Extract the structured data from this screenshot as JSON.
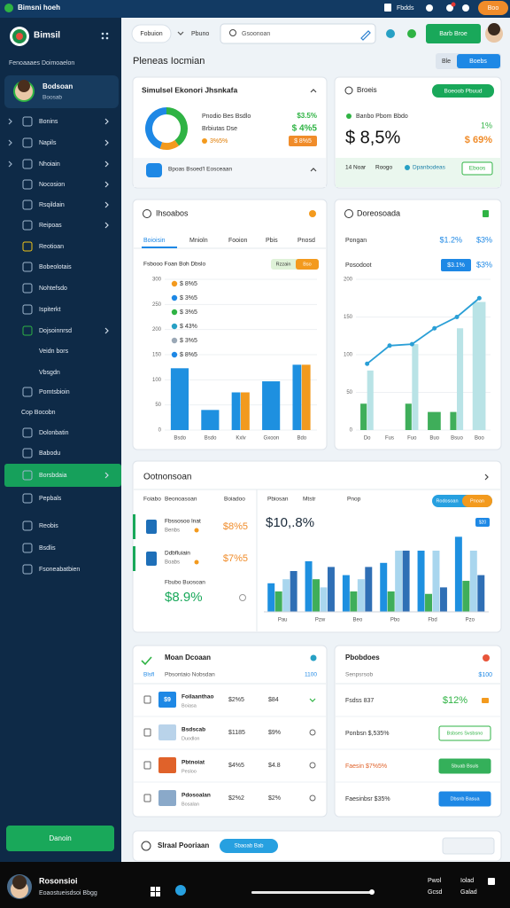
{
  "top_bar": {
    "title": "Bimsni hoeh",
    "links": [
      "Fbdds",
      "Boo"
    ]
  },
  "sidebar": {
    "brand": "Bimsil",
    "subtitle": "Fenoaaaes Doimoaelon",
    "profile": {
      "name": "Bodsoan",
      "role": "Boosab"
    },
    "menu": [
      "Bonins",
      "Napils",
      "Nhoiain",
      "Nocosion",
      "Rsqildain",
      "Reipoas",
      "Reotioan",
      "Bobeolotais",
      "Nohtefsdo",
      "Ispiterkt",
      "Dojsoinnrsd",
      "Veidn bors",
      "Vbsgdn",
      "Pomtsbioin",
      "Cop Bocobn",
      "Dolonbatin",
      "Babodu",
      "Borsbdaia",
      "Pepbals",
      "Reobis",
      "Bsdlis",
      "Fsoneabatbien"
    ],
    "active": 17,
    "button": "Danoin"
  },
  "header": {
    "tabs": [
      "Fobuion",
      "Pbuno"
    ],
    "search": "Gsoonoan",
    "action": "Barb Broe",
    "heading": "Pleneas Iocmian",
    "toggle": [
      "Ble",
      "Boebs"
    ]
  },
  "cards": [
    {
      "title": "Simulsel Ekonori Jhsnkafa",
      "rows": [
        [
          "Pnodio Bes Bsdlo",
          "$3.5%"
        ],
        [
          "Brbiutas Dse",
          "$ 4%5"
        ],
        [
          "3%5%",
          "$ 8%5"
        ]
      ],
      "footer": "Bpoas Bsoed'l Eosceaan",
      "chart": {
        "type": "pie",
        "values": [
          40,
          15,
          45
        ],
        "colors": [
          "#2fb344",
          "#f39a1e",
          "#1e88e5"
        ]
      }
    },
    {
      "title": "Broeis",
      "badge": "Boeoob Pbuud",
      "caption": "Banbo Pbom Bbdo",
      "value": "$ 8,5%",
      "side": [
        "1%",
        "$ 69%"
      ],
      "footer": [
        "14 Noar",
        "Roogo",
        "Dpanbodeas",
        "Eboos"
      ]
    },
    {
      "title": "Ihsoabos",
      "tabs": [
        "Boioisin",
        "Mnioln",
        "Fooion",
        "Pbis",
        "Pnosd"
      ],
      "subtitle": "Fsbooo Foan Boh Dbslo",
      "toggle": [
        "Rzzain",
        "Bso"
      ],
      "annotations": [
        "$ 8%5",
        "$ 3%5",
        "$ 3%5",
        "$ 43%",
        "$ 3%5",
        "$ 8%5"
      ],
      "chart": {
        "type": "bar",
        "categories": [
          "Bsdo",
          "Bsdo",
          "Kxlv",
          "Gxoon",
          "Bdo"
        ],
        "series": [
          {
            "color": "#1e90e0",
            "values": [
              123,
              40,
              75,
              97,
              130
            ]
          },
          {
            "color": "#f29a1f",
            "values": [
              null,
              null,
              75,
              null,
              130
            ]
          }
        ],
        "ylim": [
          0,
          300
        ],
        "yticks": [
          0,
          50,
          100,
          150,
          200,
          250,
          300
        ],
        "grid": true
      }
    },
    {
      "title": "Doreosoada",
      "rows": [
        [
          "Pongan",
          "$1.2%",
          "$3%"
        ],
        [
          "Posodoot",
          "$3.1%",
          "$3%"
        ]
      ],
      "chart": {
        "type": "combo",
        "categories": [
          "Do",
          "Fus",
          "Fuo",
          "Buo",
          "Bsuo",
          "Boo"
        ],
        "series": [
          {
            "type": "bar",
            "color": "#3fae5a",
            "values": [
              35,
              null,
              35,
              24,
              24,
              null
            ]
          },
          {
            "type": "bar",
            "color": "#b9e3e6",
            "values": [
              79,
              null,
              114,
              null,
              135,
              170
            ]
          },
          {
            "type": "line",
            "color": "#2a9fd6",
            "values": [
              88,
              112,
              114,
              135,
              150,
              175
            ]
          }
        ],
        "ylim": [
          0,
          200
        ],
        "yticks": [
          0,
          50,
          100,
          150,
          200
        ],
        "grid": true
      }
    },
    {
      "title": "Ootnonsoan",
      "columns": [
        "Foiabo",
        "Beonoasoan",
        "Boiadoo"
      ],
      "items": [
        {
          "name": "Fbssosoo Inat",
          "note": "Benbs",
          "value": "$8%5"
        },
        {
          "name": "Ddbfluiain",
          "note": "Boabs",
          "value": "$7%5"
        }
      ],
      "summary": {
        "label": "Fbubo Buosoan",
        "value": "$8.9%"
      },
      "chart": {
        "type": "bar",
        "title": "$10,.8%",
        "headers": [
          "Pbiosan",
          "Mtstr",
          "Pnop"
        ],
        "toggle": [
          "Rodosoan",
          "Pnoan"
        ],
        "badge": "$20",
        "categories": [
          "Pau",
          "Pzw",
          "Beo",
          "Pbo",
          "Fbd",
          "Pzo"
        ],
        "series": [
          {
            "color": "#1e90e0",
            "values": [
              35,
              62,
              45,
              60,
              75,
              92
            ]
          },
          {
            "color": "#3fae5a",
            "values": [
              25,
              40,
              25,
              25,
              22,
              38
            ]
          },
          {
            "color": "#a9d6ee",
            "values": [
              40,
              30,
              40,
              75,
              75,
              75
            ]
          },
          {
            "color": "#2f6fb5",
            "values": [
              50,
              55,
              55,
              75,
              30,
              45
            ]
          }
        ],
        "ylim": [
          0,
          100
        ],
        "grid": false
      }
    },
    {
      "title": "Moan Dcoaan",
      "header": [
        "Blsfl",
        "Pbsontaio Nobsdan",
        "1100"
      ],
      "rows": [
        {
          "tag": "$9",
          "name": "Foilaanthao",
          "sub": "Boiasa",
          "a": "$2%5",
          "b": "$84"
        },
        {
          "name": "Bsdscab",
          "sub": "Duodlon",
          "a": "$1185",
          "b": "$9%"
        },
        {
          "name": "Pbtnoiat",
          "sub": "Pesloo",
          "a": "$4%5",
          "b": "$4.8"
        },
        {
          "name": "Pdosoalan",
          "sub": "Bosalan",
          "a": "$2%2",
          "b": "$2%"
        }
      ]
    },
    {
      "title": "Pbobdoes",
      "subtitle": "Senpsrsob",
      "value": "$100",
      "rows": [
        [
          "Fsdss 837",
          "$12%"
        ],
        [
          "Ponbsn $,535%",
          "Bsbses Svsbsno"
        ],
        [
          "Faesin $7%5%",
          "Sbuab Bsuls"
        ],
        [
          "Faesinbsr $35%",
          "Dbsnb Basua"
        ]
      ]
    }
  ],
  "footer_bar": {
    "title": "Slraal Pooriaan",
    "button": "Sbaoab Bab"
  },
  "taskbar": {
    "user": "Rosonsioi",
    "status": "Eoaostueisdsoi Bbgg",
    "tray": [
      "Pwol",
      "Iolad",
      "Gcsd",
      "Galad"
    ]
  }
}
